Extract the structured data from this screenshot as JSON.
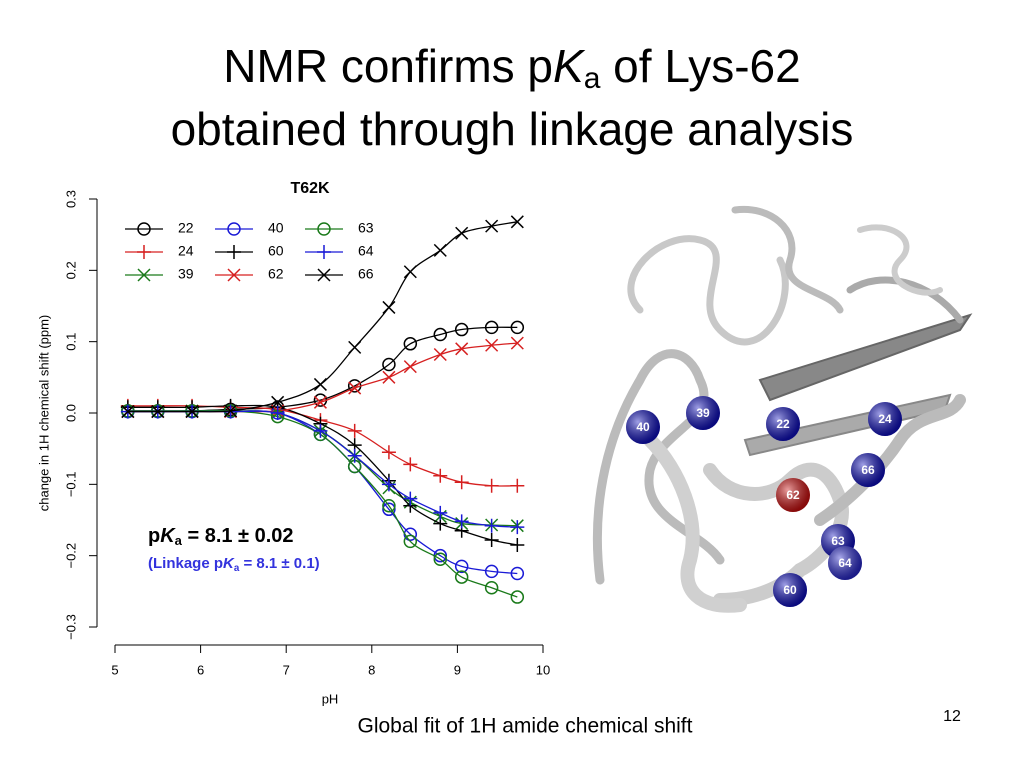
{
  "slide": {
    "title_line1": [
      "NMR confirms p",
      "K",
      "a",
      " of Lys-62"
    ],
    "title_line2": "obtained through linkage analysis",
    "caption": "Global fit of 1H amide chemical shift",
    "page_number": "12"
  },
  "chart_data": {
    "type": "scatter",
    "title": "T62K",
    "xlabel": "pH",
    "ylabel": "change in 1H chemical shift (ppm)",
    "x": [
      5.15,
      5.5,
      5.9,
      6.35,
      6.9,
      7.4,
      7.8,
      8.2,
      8.45,
      8.8,
      9.05,
      9.4,
      9.7
    ],
    "xlim": [
      5,
      10
    ],
    "xticks": [
      5,
      6,
      7,
      8,
      9,
      10
    ],
    "ylim": [
      -0.3,
      0.3
    ],
    "yticks": [
      {
        "value": -0.3,
        "label": "−0.3"
      },
      {
        "value": -0.2,
        "label": "−0.2"
      },
      {
        "value": -0.1,
        "label": "−0.1"
      },
      {
        "value": 0,
        "label": "0.0"
      },
      0.1,
      0.2,
      0.3
    ],
    "fit_lines": true,
    "series": [
      {
        "name": "22",
        "color": "#000000",
        "marker": "circle",
        "values": [
          0.003,
          0.003,
          0.003,
          0.005,
          0.008,
          0.018,
          0.038,
          0.068,
          0.097,
          0.11,
          0.117,
          0.12,
          0.12
        ]
      },
      {
        "name": "24",
        "color": "#d62020",
        "marker": "plus",
        "values": [
          0.01,
          0.01,
          0.01,
          0.008,
          0.005,
          -0.01,
          -0.025,
          -0.055,
          -0.072,
          -0.088,
          -0.097,
          -0.102,
          -0.102
        ]
      },
      {
        "name": "39",
        "color": "#1a7a1a",
        "marker": "x",
        "values": [
          0.002,
          0.002,
          0.003,
          0.003,
          0.0,
          -0.025,
          -0.06,
          -0.105,
          -0.125,
          -0.145,
          -0.155,
          -0.157,
          -0.158
        ]
      },
      {
        "name": "40",
        "color": "#1a1ad6",
        "marker": "circle",
        "values": [
          0.002,
          0.002,
          0.002,
          0.002,
          0.0,
          -0.03,
          -0.075,
          -0.135,
          -0.17,
          -0.2,
          -0.215,
          -0.222,
          -0.225
        ]
      },
      {
        "name": "60",
        "color": "#000000",
        "marker": "plus",
        "values": [
          0.008,
          0.008,
          0.008,
          0.01,
          0.008,
          -0.015,
          -0.045,
          -0.095,
          -0.13,
          -0.155,
          -0.165,
          -0.178,
          -0.185
        ]
      },
      {
        "name": "62",
        "color": "#d62020",
        "marker": "x",
        "values": [
          0.002,
          0.002,
          0.002,
          0.002,
          0.003,
          0.015,
          0.035,
          0.05,
          0.065,
          0.082,
          0.09,
          0.095,
          0.098
        ]
      },
      {
        "name": "63",
        "color": "#1a7a1a",
        "marker": "circle",
        "values": [
          0.003,
          0.003,
          0.003,
          0.003,
          -0.005,
          -0.03,
          -0.075,
          -0.13,
          -0.18,
          -0.205,
          -0.23,
          -0.245,
          -0.258
        ]
      },
      {
        "name": "64",
        "color": "#1a1ad6",
        "marker": "plus",
        "values": [
          0.002,
          0.002,
          0.002,
          0.002,
          0.0,
          -0.025,
          -0.06,
          -0.1,
          -0.12,
          -0.14,
          -0.152,
          -0.158,
          -0.16
        ]
      },
      {
        "name": "66",
        "color": "#000000",
        "marker": "x",
        "values": [
          0.002,
          0.002,
          0.002,
          0.003,
          0.015,
          0.04,
          0.092,
          0.148,
          0.198,
          0.228,
          0.252,
          0.262,
          0.268
        ]
      }
    ],
    "annotations": {
      "pka": [
        "p",
        "K",
        "a",
        " = 8.1 ± 0.02"
      ],
      "linkage": [
        "(Linkage p",
        "K",
        "a",
        " = 8.1 ± 0.1)"
      ]
    }
  },
  "structure": {
    "spheres": [
      {
        "label": "40",
        "color": "#1010c0"
      },
      {
        "label": "39",
        "color": "#1010c0"
      },
      {
        "label": "22",
        "color": "#1010c0"
      },
      {
        "label": "24",
        "color": "#1010c0"
      },
      {
        "label": "66",
        "color": "#1010c0"
      },
      {
        "label": "62",
        "color": "#d01010"
      },
      {
        "label": "63",
        "color": "#1010c0"
      },
      {
        "label": "64",
        "color": "#2a2ad0"
      },
      {
        "label": "60",
        "color": "#1010c0"
      }
    ]
  }
}
